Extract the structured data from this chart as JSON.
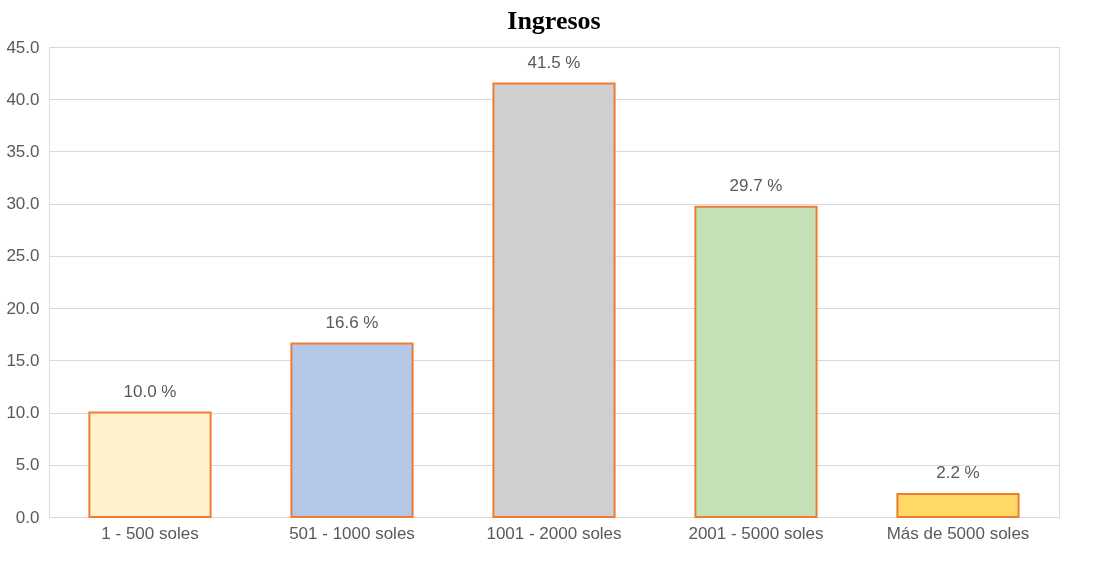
{
  "chart_data": {
    "type": "bar",
    "title": "Ingresos",
    "categories": [
      "1 - 500 soles",
      "501 - 1000 soles",
      "1001 - 2000 soles",
      "2001 - 5000 soles",
      "Más de 5000 soles"
    ],
    "values": [
      10.0,
      16.6,
      41.5,
      29.7,
      2.2
    ],
    "colors": [
      "#fff2cc",
      "#b4c7e7",
      "#d0cece",
      "#c5e0b4",
      "#ffd966"
    ],
    "value_labels": [
      "10.0  %",
      "16.6  %",
      "41.5  %",
      "29.7  %",
      "2.2  %"
    ],
    "ylim": [
      0,
      45
    ],
    "yticks": [
      {
        "value": 0,
        "label": "0.0"
      },
      {
        "value": 5,
        "label": "5.0"
      },
      {
        "value": 10,
        "label": "10.0"
      },
      {
        "value": 15,
        "label": "15.0"
      },
      {
        "value": 20,
        "label": "20.0"
      },
      {
        "value": 25,
        "label": "25.0"
      },
      {
        "value": 30,
        "label": "30.0"
      },
      {
        "value": 35,
        "label": "35.0"
      },
      {
        "value": 40,
        "label": "40.0"
      },
      {
        "value": 45,
        "label": "45.0"
      }
    ],
    "grid": "y"
  }
}
